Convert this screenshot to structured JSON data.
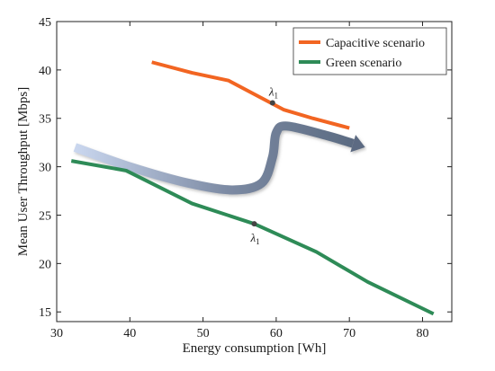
{
  "chart_data": {
    "type": "line",
    "title": "",
    "xlabel": "Energy consumption [Wh]",
    "ylabel": "Mean User Throughput [Mbps]",
    "xlim": [
      30,
      84
    ],
    "ylim": [
      14,
      45
    ],
    "xticks": [
      30,
      40,
      50,
      60,
      70,
      80
    ],
    "yticks": [
      15,
      20,
      25,
      30,
      35,
      40,
      45
    ],
    "grid": false,
    "legend_position": "top-right",
    "series": [
      {
        "name": "Capacitive scenario",
        "color": "#f26522",
        "x": [
          43,
          48.5,
          53.5,
          57.5,
          61,
          65,
          70
        ],
        "y": [
          40.8,
          39.7,
          38.9,
          37.3,
          35.9,
          35.0,
          34.0
        ]
      },
      {
        "name": "Green scenario",
        "color": "#2e8b57",
        "x": [
          32,
          39.5,
          48.5,
          57,
          65.5,
          72.5,
          81.5
        ],
        "y": [
          30.6,
          29.6,
          26.2,
          24.1,
          21.2,
          18.1,
          14.8
        ]
      }
    ],
    "annotations": [
      {
        "text": "λ",
        "sub": "1",
        "x": 59.5,
        "y": 36.6,
        "series": "Capacitive scenario"
      },
      {
        "text": "λ",
        "sub": "1",
        "x": 57,
        "y": 24.1,
        "series": "Green scenario"
      }
    ],
    "arrow": {
      "description_color_start": "#c8d4ec",
      "description_color_end": "#6a7a90",
      "path_data": [
        [
          32.5,
          32.0
        ],
        [
          40,
          30.0
        ],
        [
          48,
          28.3
        ],
        [
          54,
          27.6
        ],
        [
          58,
          28.3
        ],
        [
          59.5,
          31.0
        ],
        [
          60,
          33.5
        ],
        [
          61.5,
          34.2
        ],
        [
          67,
          33.2
        ],
        [
          70.5,
          32.4
        ]
      ]
    }
  }
}
